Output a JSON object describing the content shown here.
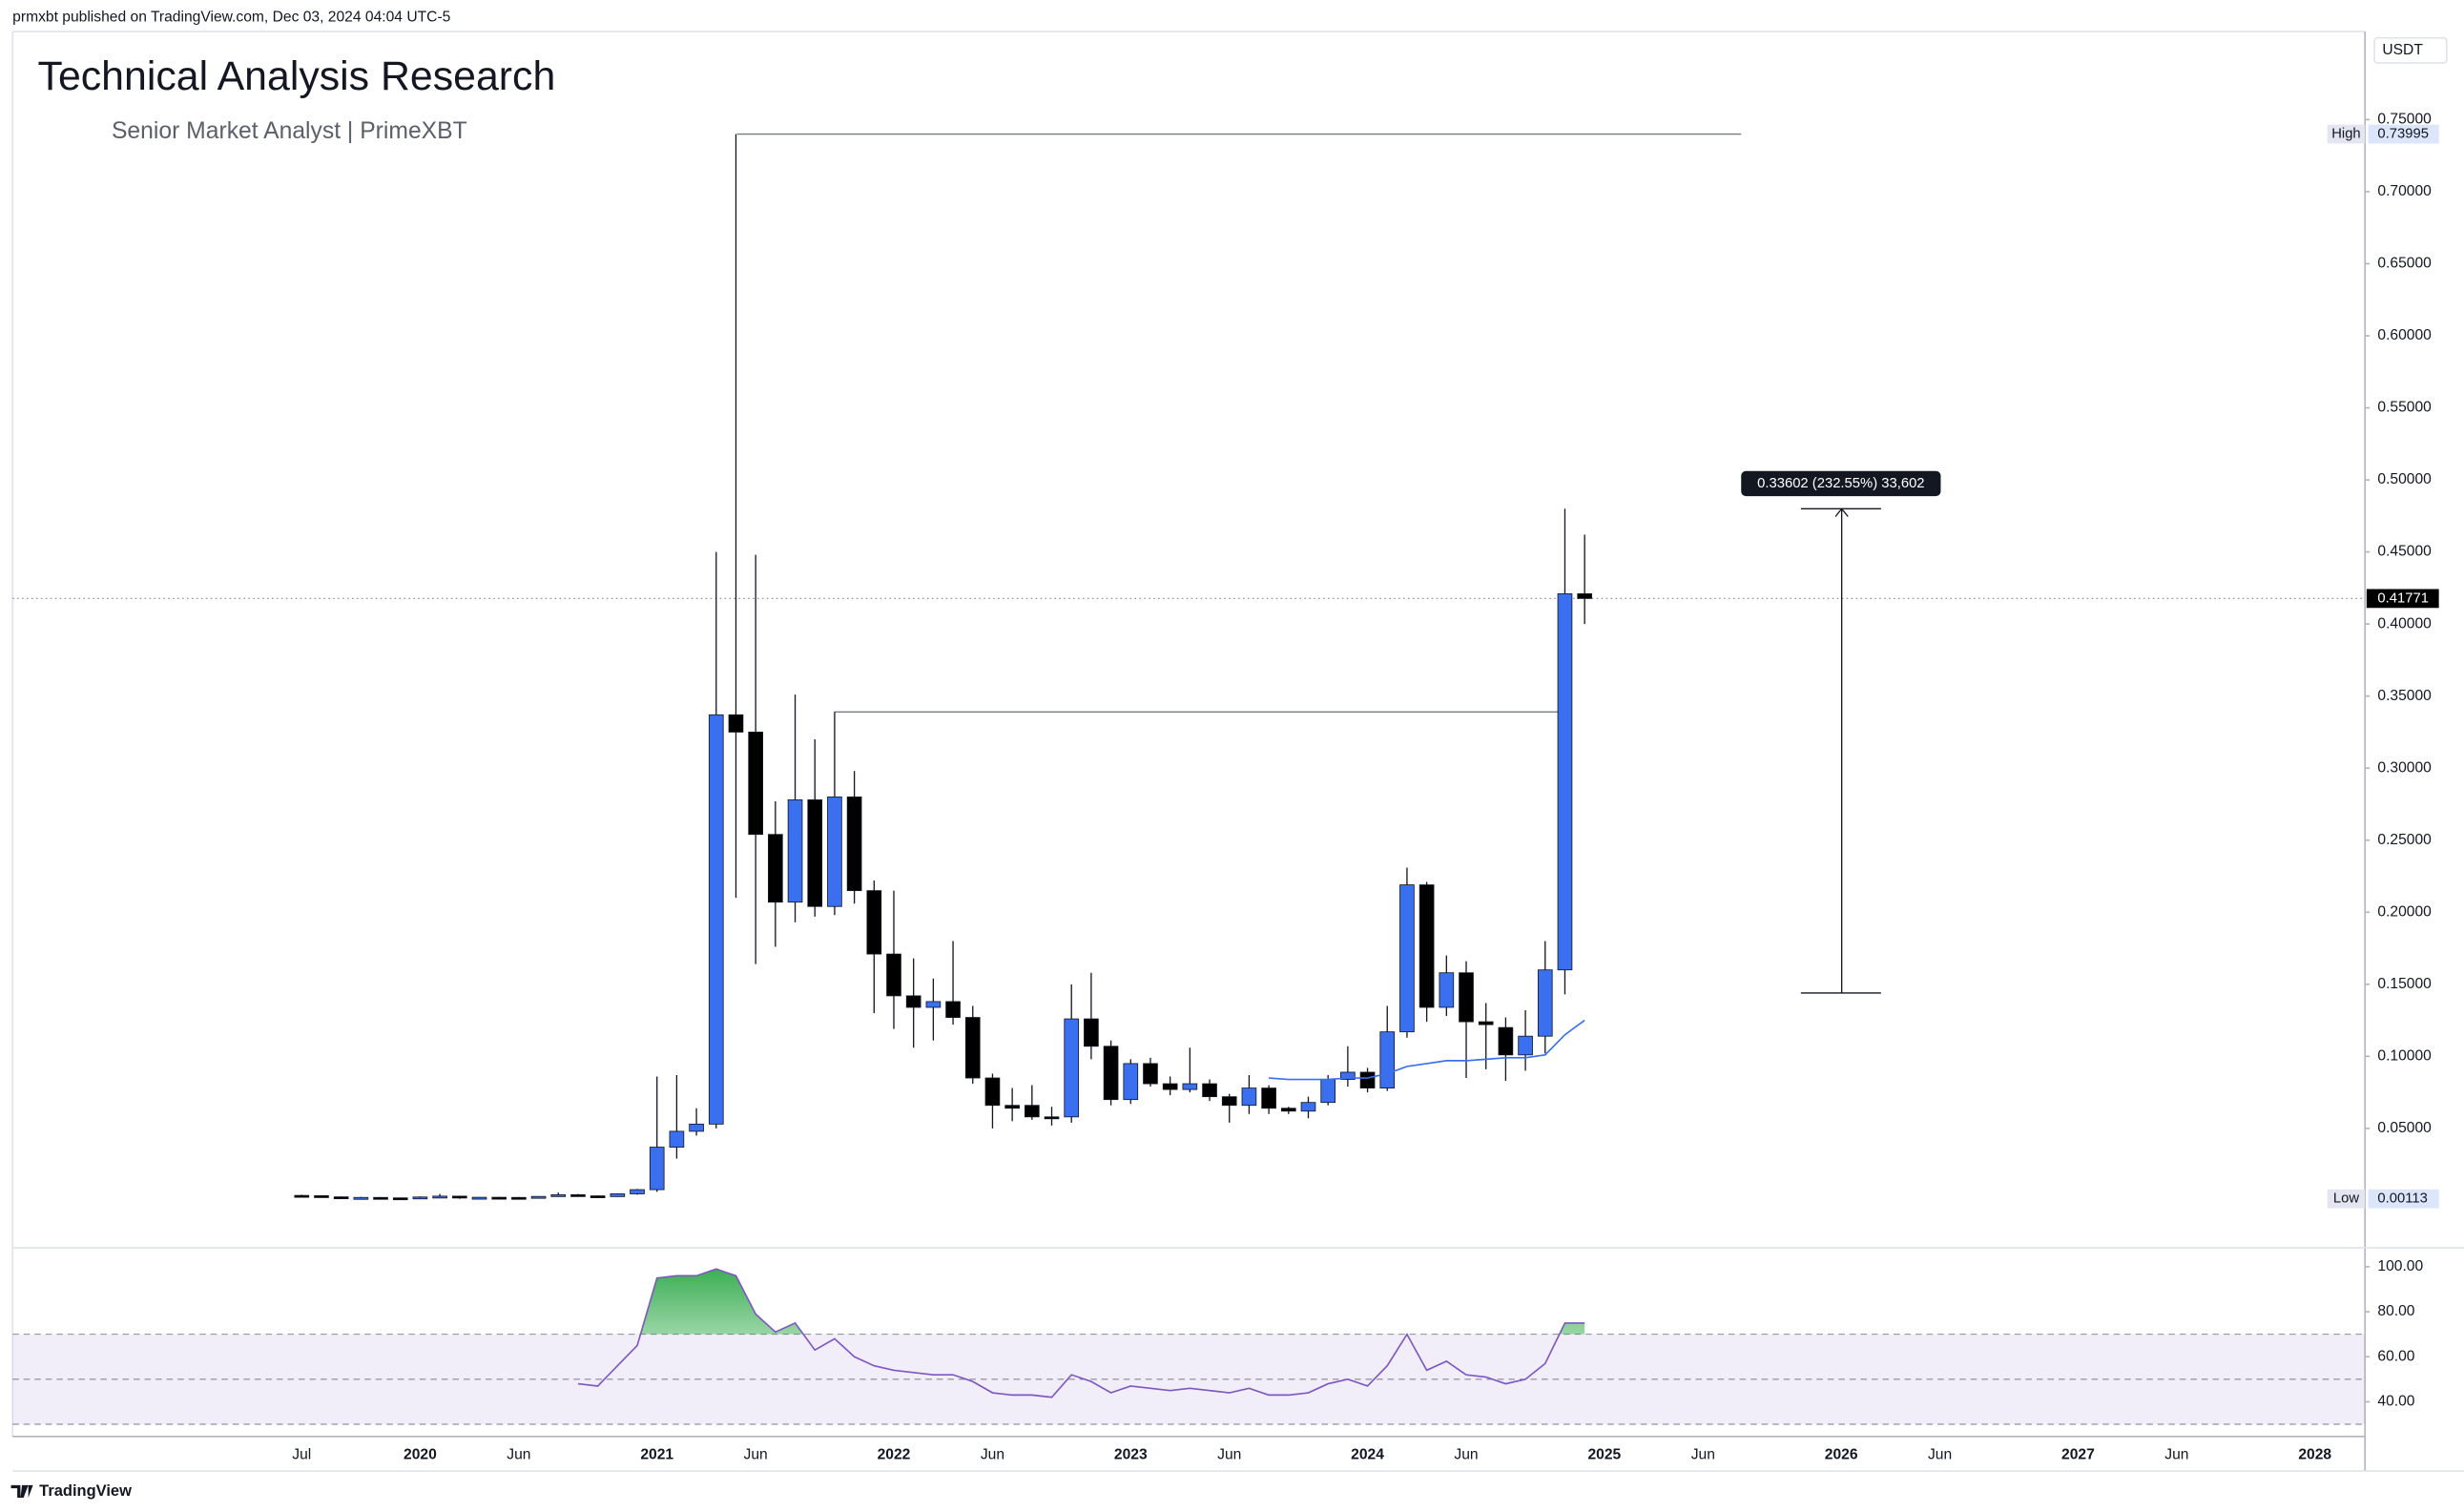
{
  "chart_data": {
    "type": "candlestick",
    "published": "prmxbt published on TradingView.com, Dec 03, 2024 04:04 UTC-5",
    "title": "Technical Analysis Research",
    "subtitle": "Senior Market Analyst | PrimeXBT",
    "currency": "USDT",
    "footer_brand": "TradingView",
    "categories": [
      "Jul",
      null,
      null,
      null,
      null,
      null,
      "2020",
      null,
      null,
      null,
      null,
      "Jun",
      null,
      null,
      null,
      null,
      null,
      null,
      "2021",
      null,
      null,
      null,
      null,
      "Jun",
      null,
      null,
      null,
      null,
      null,
      null,
      "2022",
      null,
      null,
      null,
      null,
      "Jun",
      null,
      null,
      null,
      null,
      null,
      null,
      "2023",
      null,
      null,
      null,
      null,
      "Jun",
      null,
      null,
      null,
      null,
      null,
      null,
      "2024",
      null,
      null,
      null,
      null,
      "Jun",
      null,
      null,
      null,
      null,
      null,
      null,
      "2025",
      null,
      null,
      null,
      null,
      "Jun",
      null,
      null,
      null,
      null,
      null,
      null,
      "2026",
      null,
      null,
      null,
      null,
      "Jun",
      null,
      null,
      null,
      null,
      null,
      null,
      "2027",
      null,
      null,
      null,
      null,
      "Jun",
      null,
      null,
      null,
      null,
      null,
      null,
      "2028",
      null,
      null
    ],
    "open": [
      0.0035,
      0.0033,
      0.0025,
      0.002,
      0.0021,
      0.0018,
      0.0015,
      0.0024,
      0.003,
      0.0018,
      0.0022,
      0.0021,
      0.0019,
      0.0028,
      0.004,
      0.0032,
      0.0027,
      0.0046,
      0.0075,
      0.037,
      0.048,
      0.053,
      0.337,
      0.325,
      0.254,
      0.207,
      0.278,
      0.204,
      0.28,
      0.215,
      0.171,
      0.142,
      0.134,
      0.138,
      0.127,
      0.085,
      0.066,
      0.066,
      0.058,
      0.058,
      0.126,
      0.107,
      0.07,
      0.095,
      0.081,
      0.077,
      0.081,
      0.072,
      0.066,
      0.078,
      0.064,
      0.062,
      0.068,
      0.084,
      0.089,
      0.078,
      0.117,
      0.219,
      0.134,
      0.158,
      0.124,
      0.12,
      0.101,
      0.114,
      0.16,
      0.421,
      null,
      null,
      null,
      null,
      null,
      null,
      null,
      null,
      null,
      null,
      null,
      null,
      null,
      null,
      null,
      null,
      null,
      null,
      null,
      null,
      null,
      null,
      null,
      null,
      null,
      null,
      null,
      null,
      null,
      null,
      null,
      null,
      null,
      null,
      null,
      null,
      null,
      null,
      null
    ],
    "high": [
      0.004,
      0.0035,
      0.0028,
      0.0025,
      0.0024,
      0.002,
      0.0028,
      0.0045,
      0.0032,
      0.0024,
      0.0026,
      0.0024,
      0.003,
      0.0055,
      0.0045,
      0.0035,
      0.005,
      0.008,
      0.086,
      0.087,
      0.064,
      0.45,
      0.73995,
      0.448,
      0.277,
      0.351,
      0.32,
      0.339,
      0.298,
      0.222,
      0.215,
      0.168,
      0.154,
      0.18,
      0.135,
      0.088,
      0.078,
      0.08,
      0.065,
      0.15,
      0.158,
      0.111,
      0.098,
      0.099,
      0.086,
      0.106,
      0.084,
      0.074,
      0.087,
      0.08,
      0.065,
      0.072,
      0.087,
      0.107,
      0.092,
      0.135,
      0.231,
      0.221,
      0.17,
      0.166,
      0.137,
      0.127,
      0.132,
      0.18,
      0.48,
      0.462,
      null,
      null,
      null,
      null,
      null,
      null,
      null,
      null,
      null,
      null,
      null,
      null,
      null,
      null,
      null,
      null,
      null,
      null,
      null,
      null,
      null,
      null,
      null,
      null,
      null,
      null,
      null,
      null,
      null,
      null,
      null,
      null,
      null,
      null,
      null,
      null,
      null,
      null,
      null
    ],
    "low": [
      0.003,
      0.0022,
      0.0018,
      0.0017,
      0.0016,
      0.0012,
      0.0014,
      0.0021,
      0.00113,
      0.0016,
      0.0018,
      0.0017,
      0.0018,
      0.0026,
      0.0028,
      0.0024,
      0.0025,
      0.004,
      0.006,
      0.029,
      0.045,
      0.05,
      0.21,
      0.164,
      0.176,
      0.193,
      0.197,
      0.198,
      0.206,
      0.13,
      0.119,
      0.106,
      0.111,
      0.122,
      0.081,
      0.05,
      0.055,
      0.056,
      0.052,
      0.054,
      0.098,
      0.066,
      0.067,
      0.079,
      0.073,
      0.075,
      0.069,
      0.054,
      0.06,
      0.06,
      0.06,
      0.057,
      0.066,
      0.079,
      0.075,
      0.076,
      0.113,
      0.124,
      0.128,
      0.085,
      0.091,
      0.083,
      0.09,
      0.102,
      0.143,
      0.4,
      null,
      null,
      null,
      null,
      null,
      null,
      null,
      null,
      null,
      null,
      null,
      null,
      null,
      null,
      null,
      null,
      null,
      null,
      null,
      null,
      null,
      null,
      null,
      null,
      null,
      null,
      null,
      null,
      null,
      null,
      null,
      null,
      null,
      null,
      null,
      null,
      null,
      null,
      null
    ],
    "close": [
      0.0033,
      0.0025,
      0.002,
      0.0021,
      0.0018,
      0.0015,
      0.0024,
      0.003,
      0.0018,
      0.0022,
      0.0021,
      0.0019,
      0.0028,
      0.004,
      0.0032,
      0.0027,
      0.0046,
      0.0075,
      0.037,
      0.048,
      0.053,
      0.337,
      0.325,
      0.254,
      0.207,
      0.278,
      0.204,
      0.28,
      0.215,
      0.171,
      0.142,
      0.134,
      0.138,
      0.127,
      0.085,
      0.066,
      0.064,
      0.058,
      0.057,
      0.126,
      0.107,
      0.07,
      0.095,
      0.081,
      0.077,
      0.081,
      0.072,
      0.066,
      0.078,
      0.064,
      0.062,
      0.068,
      0.084,
      0.089,
      0.078,
      0.117,
      0.219,
      0.134,
      0.158,
      0.124,
      0.122,
      0.101,
      0.114,
      0.16,
      0.421,
      0.41771,
      null,
      null,
      null,
      null,
      null,
      null,
      null,
      null,
      null,
      null,
      null,
      null,
      null,
      null,
      null,
      null,
      null,
      null,
      null,
      null,
      null,
      null,
      null,
      null,
      null,
      null,
      null,
      null,
      null,
      null,
      null,
      null,
      null,
      null,
      null,
      null,
      null,
      null,
      null
    ],
    "up_color": "#3a6ff0",
    "down_color": "#000000",
    "wick_color": "#131722",
    "overlay": {
      "color": "#3a6ff0",
      "values": [
        null,
        null,
        null,
        null,
        null,
        null,
        null,
        null,
        null,
        null,
        null,
        null,
        null,
        null,
        null,
        null,
        null,
        null,
        null,
        null,
        null,
        null,
        null,
        null,
        null,
        null,
        null,
        null,
        null,
        null,
        null,
        null,
        null,
        null,
        null,
        null,
        null,
        null,
        null,
        null,
        null,
        null,
        null,
        null,
        null,
        null,
        null,
        null,
        null,
        0.085,
        0.084,
        0.084,
        0.084,
        0.085,
        0.085,
        0.088,
        0.093,
        0.095,
        0.097,
        0.097,
        0.098,
        0.099,
        0.099,
        0.101,
        0.115,
        0.125,
        null,
        null,
        null,
        null,
        null,
        null,
        null,
        null,
        null,
        null,
        null,
        null,
        null,
        null,
        null,
        null,
        null,
        null,
        null,
        null,
        null,
        null,
        null,
        null,
        null,
        null,
        null,
        null,
        null,
        null,
        null,
        null,
        null,
        null,
        null,
        null,
        null,
        null,
        null
      ]
    },
    "ylim": [
      -0.0318,
      0.8111
    ],
    "yticks": [
      {
        "value": 0.05,
        "label": "0.05000"
      },
      {
        "value": 0.1,
        "label": "0.10000"
      },
      {
        "value": 0.15,
        "label": "0.15000"
      },
      {
        "value": 0.2,
        "label": "0.20000"
      },
      {
        "value": 0.25,
        "label": "0.25000"
      },
      {
        "value": 0.3,
        "label": "0.30000"
      },
      {
        "value": 0.35,
        "label": "0.35000"
      },
      {
        "value": 0.4,
        "label": "0.40000"
      },
      {
        "value": 0.45,
        "label": "0.45000"
      },
      {
        "value": 0.5,
        "label": "0.50000"
      },
      {
        "value": 0.55,
        "label": "0.55000"
      },
      {
        "value": 0.6,
        "label": "0.60000"
      },
      {
        "value": 0.65,
        "label": "0.65000"
      },
      {
        "value": 0.7,
        "label": "0.70000"
      },
      {
        "value": 0.75,
        "label": "0.75000"
      }
    ],
    "high_tag": {
      "label": "High",
      "value": 0.73995
    },
    "low_tag": {
      "label": "Low",
      "value": 0.00113
    },
    "last_price": 0.41771,
    "levels": [
      0.73995,
      0.339
    ],
    "measure": {
      "label": "0.33602 (232.55%) 33,602",
      "from": 0.14398,
      "to": 0.48
    },
    "rsi": {
      "color": "#7e57c2",
      "overbought_color": "#26a641",
      "values": [
        null,
        null,
        null,
        null,
        null,
        null,
        null,
        null,
        null,
        null,
        null,
        null,
        null,
        null,
        48,
        47,
        56,
        65,
        95,
        96,
        96,
        99,
        96,
        79,
        71,
        75,
        63,
        68,
        60,
        56,
        54,
        53,
        52,
        52,
        49,
        44,
        43,
        43,
        42,
        52,
        49,
        44,
        47,
        46,
        45,
        46,
        45,
        44,
        46,
        43,
        43,
        44,
        48,
        50,
        47,
        56,
        70,
        54,
        58,
        52,
        51,
        48,
        50,
        57,
        75,
        75,
        null,
        null,
        null,
        null,
        null,
        null,
        null,
        null,
        null,
        null,
        null,
        null,
        null,
        null,
        null,
        null,
        null,
        null,
        null,
        null,
        null,
        null,
        null,
        null,
        null,
        null,
        null,
        null,
        null,
        null,
        null,
        null,
        null,
        null,
        null,
        null,
        null,
        null,
        null
      ],
      "ylim": [
        24.6,
        107.7
      ],
      "bands": [
        70,
        50,
        30
      ],
      "yticks": [
        {
          "value": 40,
          "label": "40.00"
        },
        {
          "value": 60,
          "label": "60.00"
        },
        {
          "value": 80,
          "label": "80.00"
        },
        {
          "value": 100,
          "label": "100.00"
        }
      ]
    }
  }
}
